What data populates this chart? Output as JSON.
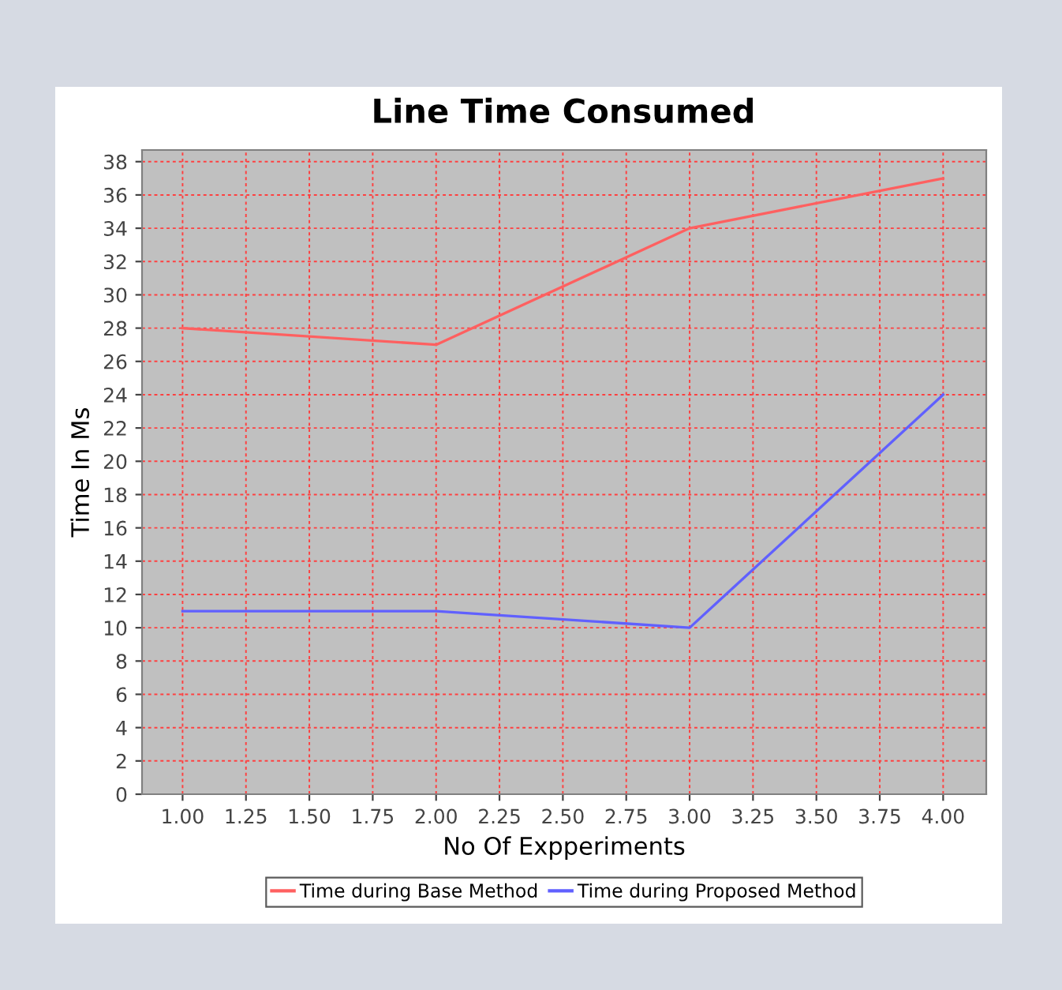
{
  "chart_data": {
    "type": "line",
    "title": "Line Time Consumed",
    "xlabel": "No Of Expperiments",
    "ylabel": "Time In Ms",
    "x": [
      1,
      2,
      3,
      4
    ],
    "series": [
      {
        "name": "Time during Base Method",
        "color": "#ff6060",
        "values": [
          28,
          27,
          34,
          37
        ]
      },
      {
        "name": "Time during Proposed Method",
        "color": "#6060ff",
        "values": [
          11,
          11,
          10,
          24
        ]
      }
    ],
    "xlim": [
      0.84,
      4.17
    ],
    "xticks": [
      {
        "value": 1,
        "label": "1.00"
      },
      {
        "value": 1.25,
        "label": "1.25"
      },
      {
        "value": 1.5,
        "label": "1.50"
      },
      {
        "value": 1.75,
        "label": "1.75"
      },
      {
        "value": 2,
        "label": "2.00"
      },
      {
        "value": 2.25,
        "label": "2.25"
      },
      {
        "value": 2.5,
        "label": "2.50"
      },
      {
        "value": 2.75,
        "label": "2.75"
      },
      {
        "value": 3,
        "label": "3.00"
      },
      {
        "value": 3.25,
        "label": "3.25"
      },
      {
        "value": 3.5,
        "label": "3.50"
      },
      {
        "value": 3.75,
        "label": "3.75"
      },
      {
        "value": 4,
        "label": "4.00"
      }
    ],
    "ylim": [
      0,
      38.7
    ],
    "yticks": [
      0,
      2,
      4,
      6,
      8,
      10,
      12,
      14,
      16,
      18,
      20,
      22,
      24,
      26,
      28,
      30,
      32,
      34,
      36,
      38
    ],
    "grid": true,
    "legend": "bottom",
    "marker": "none",
    "line_style": "solid"
  }
}
